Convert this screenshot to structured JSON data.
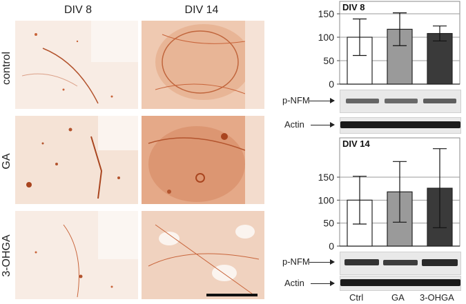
{
  "columns": [
    "DIV 8",
    "DIV 14"
  ],
  "rows": [
    "control",
    "GA",
    "3-OHGA"
  ],
  "colors": {
    "ctrl_bar": "#ffffff",
    "ga_bar": "#9a9a9a",
    "ohga_bar": "#3a3a3a",
    "stain": "#c8643a",
    "bg_tissue": "#f6e9df"
  },
  "blot_labels": {
    "pnfm": "p-NFM",
    "actin": "Actin"
  },
  "chart_data": [
    {
      "type": "bar",
      "title": "DIV 8",
      "categories": [
        "Ctrl",
        "GA",
        "3-OHGA"
      ],
      "values": [
        100,
        117,
        108
      ],
      "errors": [
        39,
        35,
        16
      ],
      "ylim": [
        0,
        150
      ],
      "yticks": [
        0,
        50,
        100,
        150
      ],
      "grid": true,
      "xlabel": "",
      "ylabel": ""
    },
    {
      "type": "bar",
      "title": "DIV 14",
      "categories": [
        "Ctrl",
        "GA",
        "3-OHGA"
      ],
      "values": [
        100,
        118,
        126
      ],
      "errors": [
        52,
        66,
        86
      ],
      "ylim": [
        0,
        150
      ],
      "yticks": [
        0,
        50,
        100,
        150
      ],
      "grid": true,
      "xlabel": "",
      "ylabel": ""
    }
  ]
}
